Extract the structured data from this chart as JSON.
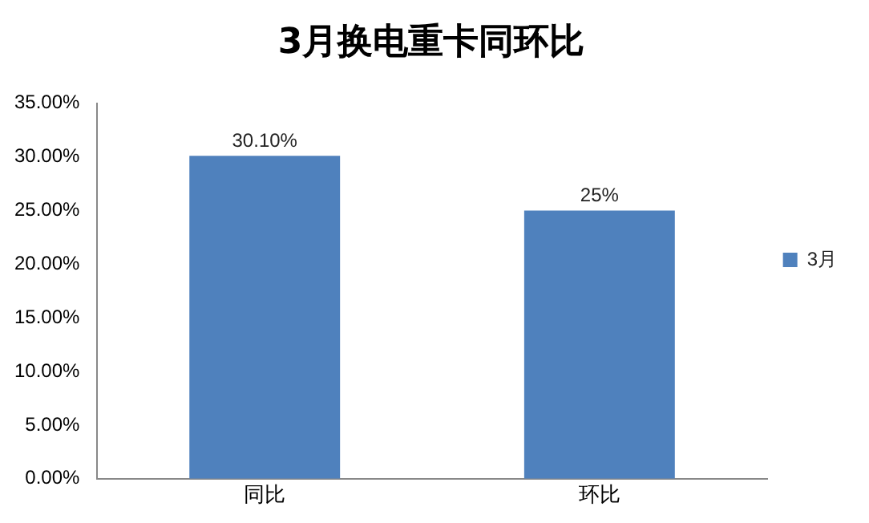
{
  "chart_data": {
    "type": "bar",
    "title": "3月换电重卡同环比",
    "categories": [
      "同比",
      "环比"
    ],
    "series": [
      {
        "name": "3月",
        "color": "#4f81bd",
        "values": [
          30.1,
          25
        ],
        "value_labels": [
          "30.10%",
          "25%"
        ]
      }
    ],
    "ylim": [
      0,
      35
    ],
    "yticks": [
      {
        "value": 0,
        "label": "0.00%"
      },
      {
        "value": 5,
        "label": "5.00%"
      },
      {
        "value": 10,
        "label": "10.00%"
      },
      {
        "value": 15,
        "label": "15.00%"
      },
      {
        "value": 20,
        "label": "20.00%"
      },
      {
        "value": 25,
        "label": "25.00%"
      },
      {
        "value": 30,
        "label": "30.00%"
      },
      {
        "value": 35,
        "label": "35.00%"
      }
    ],
    "grid": false,
    "legend": "right"
  }
}
